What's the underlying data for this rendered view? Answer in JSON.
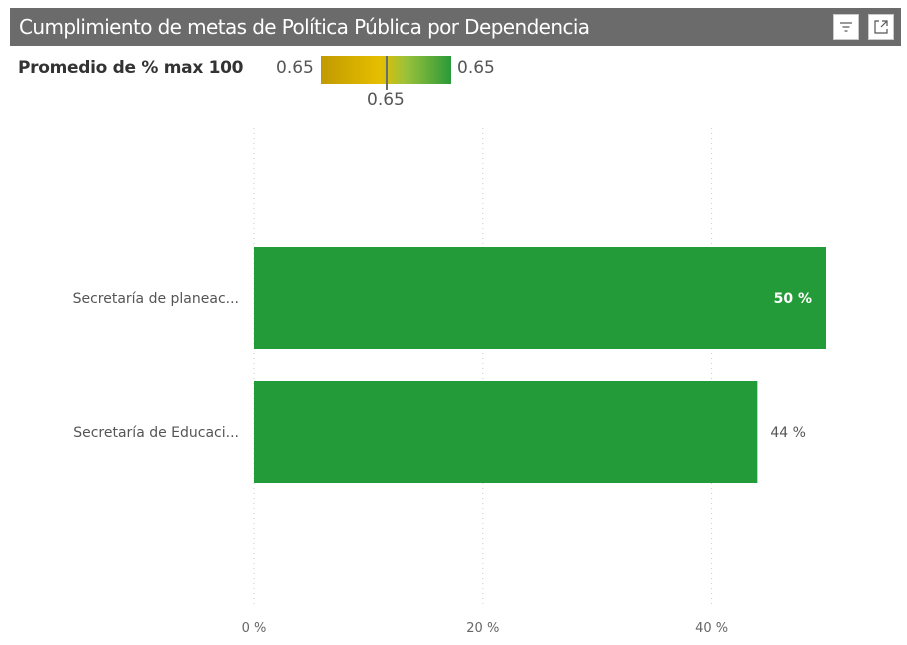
{
  "visual": {
    "title": "Cumplimiento de metas de Política Pública por Dependencia",
    "icons": {
      "filter": "filter-icon",
      "focus": "focus-mode-icon"
    }
  },
  "legend": {
    "label": "Promedio de % max 100",
    "min": "0.65",
    "max": "0.65",
    "mid": "0.65",
    "gradient_colors": [
      "#c09a00",
      "#e6be00",
      "#2b9a3a"
    ]
  },
  "chart_data": {
    "type": "bar",
    "orientation": "horizontal",
    "categories": [
      "Secretaría de planeac...",
      "Secretaría de Educaci..."
    ],
    "values": [
      50,
      44
    ],
    "data_labels": [
      "50 %",
      "44 %"
    ],
    "x_ticks": [
      "0 %",
      "20 %",
      "40 %"
    ],
    "x_tick_values": [
      0,
      20,
      40
    ],
    "xlim": [
      0,
      50
    ],
    "grid": "vertical dotted",
    "bar_color": "#239b38"
  }
}
